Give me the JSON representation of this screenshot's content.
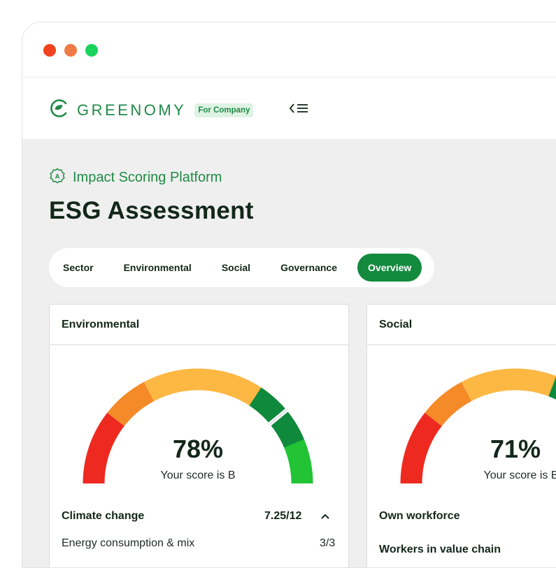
{
  "window": {
    "controls": [
      "close",
      "minimize",
      "maximize"
    ]
  },
  "header": {
    "brand": "GREENOMY",
    "badge": "For Company",
    "brand_color": "#1f8a45",
    "menu_icon": "collapse-menu-icon"
  },
  "page": {
    "platform_label": "Impact Scoring Platform",
    "platform_icon": "badge-a-icon",
    "title": "ESG Assessment"
  },
  "tabs": [
    {
      "label": "Sector",
      "active": false
    },
    {
      "label": "Environmental",
      "active": false
    },
    {
      "label": "Social",
      "active": false
    },
    {
      "label": "Governance",
      "active": false
    },
    {
      "label": "Overview",
      "active": true
    }
  ],
  "cards": {
    "environmental": {
      "title": "Environmental",
      "score": "78%",
      "score_fraction": 0.78,
      "score_text": "Your score is B",
      "rows": [
        {
          "label": "Climate change",
          "value": "7.25/12",
          "expanded": true
        },
        {
          "label": "Energy consumption & mix",
          "value": "3/3"
        }
      ]
    },
    "social": {
      "title": "Social",
      "score": "71%",
      "score_fraction": 0.71,
      "score_text": "Your score is B",
      "rows": [
        {
          "label": "Own workforce"
        },
        {
          "label": "Workers in value chain"
        }
      ]
    }
  },
  "gauge_colors": [
    "#ee2a20",
    "#f58a28",
    "#fdb844",
    "#0f8a3d",
    "#22c436"
  ]
}
